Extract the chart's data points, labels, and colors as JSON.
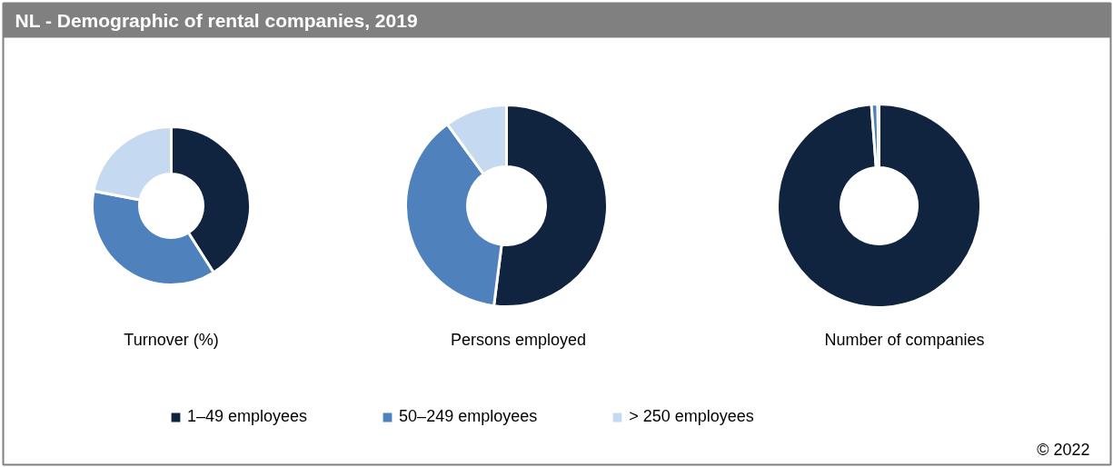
{
  "chart_data": [
    {
      "type": "donut",
      "title": "NL -  Demographic of rental companies, 2019",
      "xlabel": "Turnover (%)",
      "categories": [
        "1–49 employees",
        "50–249 employees",
        "> 250 employees"
      ],
      "values": [
        41,
        37,
        22
      ],
      "colors": [
        "#10233f",
        "#4f81bd",
        "#c5d9f1"
      ],
      "legend": "bottom"
    },
    {
      "type": "donut",
      "xlabel": "Persons employed",
      "categories": [
        null,
        null,
        null
      ],
      "values": [
        52,
        38,
        10
      ],
      "colors": [
        "#10233f",
        "#4f81bd",
        "#c5d9f1"
      ]
    },
    {
      "type": "donut",
      "xlabel": "Number of companies",
      "categories": [
        null,
        null,
        null
      ],
      "values": [
        98.8,
        1.0,
        0.2
      ],
      "colors": [
        "#10233f",
        "#4f81bd",
        "#c5d9f1"
      ],
      "annotations": [
        "© 2022"
      ]
    }
  ]
}
